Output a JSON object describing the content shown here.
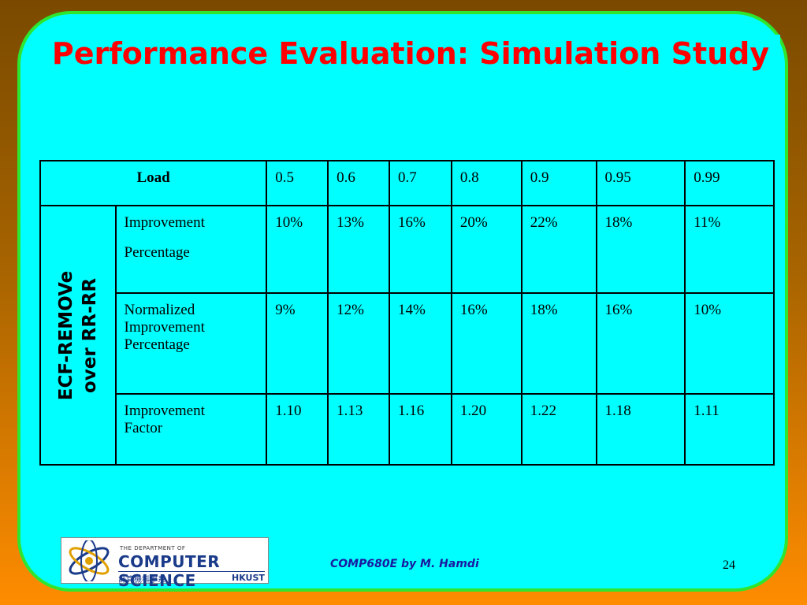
{
  "slide": {
    "title": "Performance Evaluation: Simulation Study",
    "footer": "COMP680E by M. Hamdi",
    "page_number": "24"
  },
  "table": {
    "load_header": "Load",
    "loads": [
      "0.5",
      "0.6",
      "0.7",
      "0.8",
      "0.9",
      "0.95",
      "0.99"
    ],
    "group_label_line1": "ECF-REMOVe",
    "group_label_line2": "over RR-RR",
    "rows": [
      {
        "metric_lines": [
          "Improvement",
          "Percentage"
        ],
        "values": [
          "10%",
          "13%",
          "16%",
          "20%",
          "22%",
          "18%",
          "11%"
        ]
      },
      {
        "metric_lines": [
          "Normalized",
          "Improvement",
          "Percentage"
        ],
        "values": [
          "9%",
          "12%",
          "14%",
          "16%",
          "18%",
          "16%",
          "10%"
        ]
      },
      {
        "metric_lines": [
          "Improvement",
          "Factor"
        ],
        "values": [
          "1.10",
          "1.13",
          "1.16",
          "1.20",
          "1.22",
          "1.18",
          "1.11"
        ]
      }
    ]
  },
  "logo": {
    "dept_line": "THE DEPARTMENT OF",
    "name": "COMPUTER SCIENCE",
    "chinese": "計算機科學系",
    "school": "HKUST"
  },
  "colors": {
    "background_top": "#7a4a00",
    "background_bottom": "#ff8c00",
    "panel": "#00ffff",
    "panel_border": "#2ee62e",
    "title": "#ff0000",
    "footer": "#1a1aa0"
  }
}
